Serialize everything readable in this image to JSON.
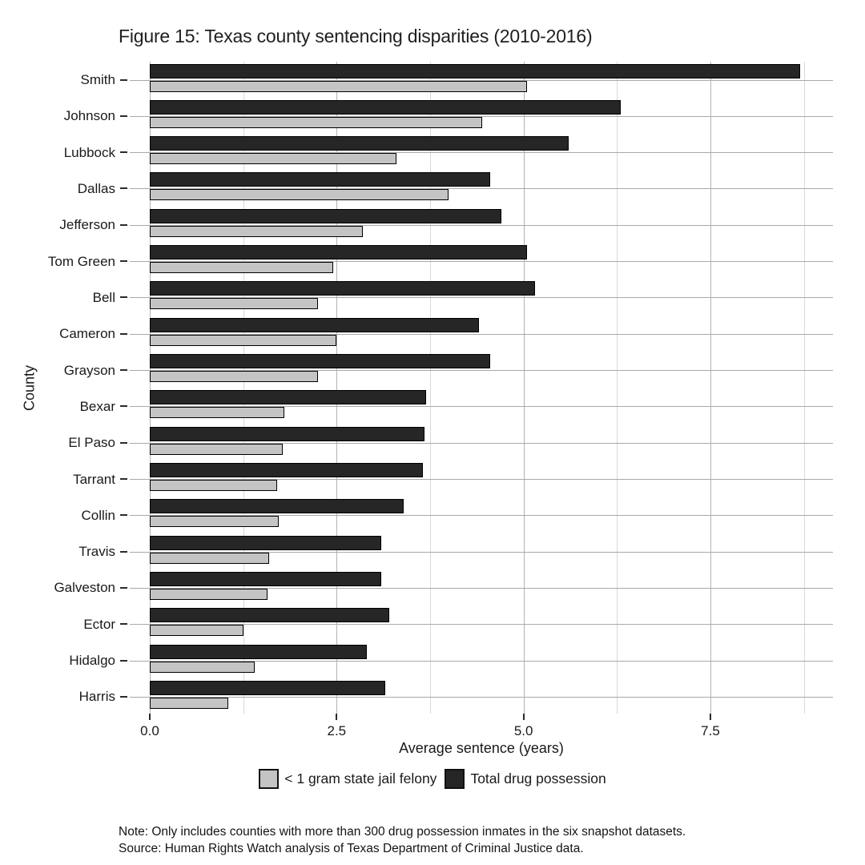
{
  "figure": {
    "title": "Figure 15: Texas county sentencing disparities (2010-2016)",
    "note_line1": "Note: Only includes counties with more than 300 drug possession inmates in the six snapshot datasets.",
    "note_line2": "Source: Human Rights Watch analysis of Texas Department of Criminal Justice data."
  },
  "chart_data": {
    "type": "bar",
    "orientation": "horizontal",
    "title": "Figure 15: Texas county sentencing disparities (2010-2016)",
    "xlabel": "Average sentence (years)",
    "ylabel": "County",
    "xlim": [
      0,
      9.15
    ],
    "x_ticks": [
      0.0,
      2.5,
      5.0,
      7.5
    ],
    "x_tick_labels": [
      "0.0",
      "2.5",
      "5.0",
      "7.5"
    ],
    "x_minor_gridlines": [
      1.25,
      3.75,
      6.25,
      8.75
    ],
    "grid": true,
    "legend_position": "bottom",
    "categories": [
      "Smith",
      "Johnson",
      "Lubbock",
      "Dallas",
      "Jefferson",
      "Tom Green",
      "Bell",
      "Cameron",
      "Grayson",
      "Bexar",
      "El Paso",
      "Tarrant",
      "Collin",
      "Travis",
      "Galveston",
      "Ector",
      "Hidalgo",
      "Harris"
    ],
    "series": [
      {
        "name": "< 1 gram state jail felony",
        "color": "#c4c4c4",
        "values": [
          5.05,
          4.45,
          3.3,
          4.0,
          2.85,
          2.45,
          2.25,
          2.5,
          2.25,
          1.8,
          1.78,
          1.7,
          1.72,
          1.6,
          1.58,
          1.25,
          1.4,
          1.05
        ]
      },
      {
        "name": "Total drug possession",
        "color": "#262626",
        "values": [
          8.7,
          6.3,
          5.6,
          4.55,
          4.7,
          5.05,
          5.15,
          4.4,
          4.55,
          3.7,
          3.67,
          3.65,
          3.4,
          3.1,
          3.1,
          3.2,
          2.9,
          3.15
        ]
      }
    ]
  }
}
